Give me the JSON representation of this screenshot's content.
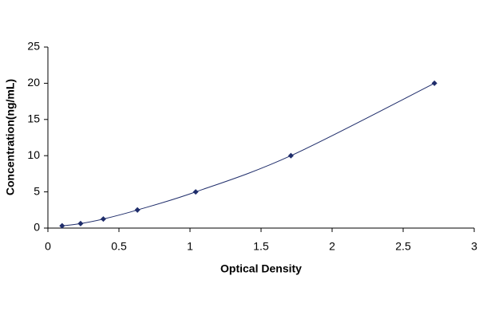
{
  "chart_data": {
    "type": "scatter",
    "x_label": "Optical Density",
    "y_label": "Concentration(ng/mL)",
    "x": [
      0.1,
      0.23,
      0.39,
      0.63,
      1.04,
      1.71,
      2.72
    ],
    "values": [
      0.312,
      0.625,
      1.25,
      2.5,
      5,
      10,
      20
    ],
    "color": "#1f2d6b",
    "fit_line": true,
    "xlim": [
      0,
      3
    ],
    "xticks": [
      0,
      0.5,
      1,
      1.5,
      2,
      2.5,
      3
    ],
    "ylim": [
      0,
      25
    ],
    "yticks": [
      0,
      5,
      10,
      15,
      20,
      25
    ],
    "grid": false
  }
}
